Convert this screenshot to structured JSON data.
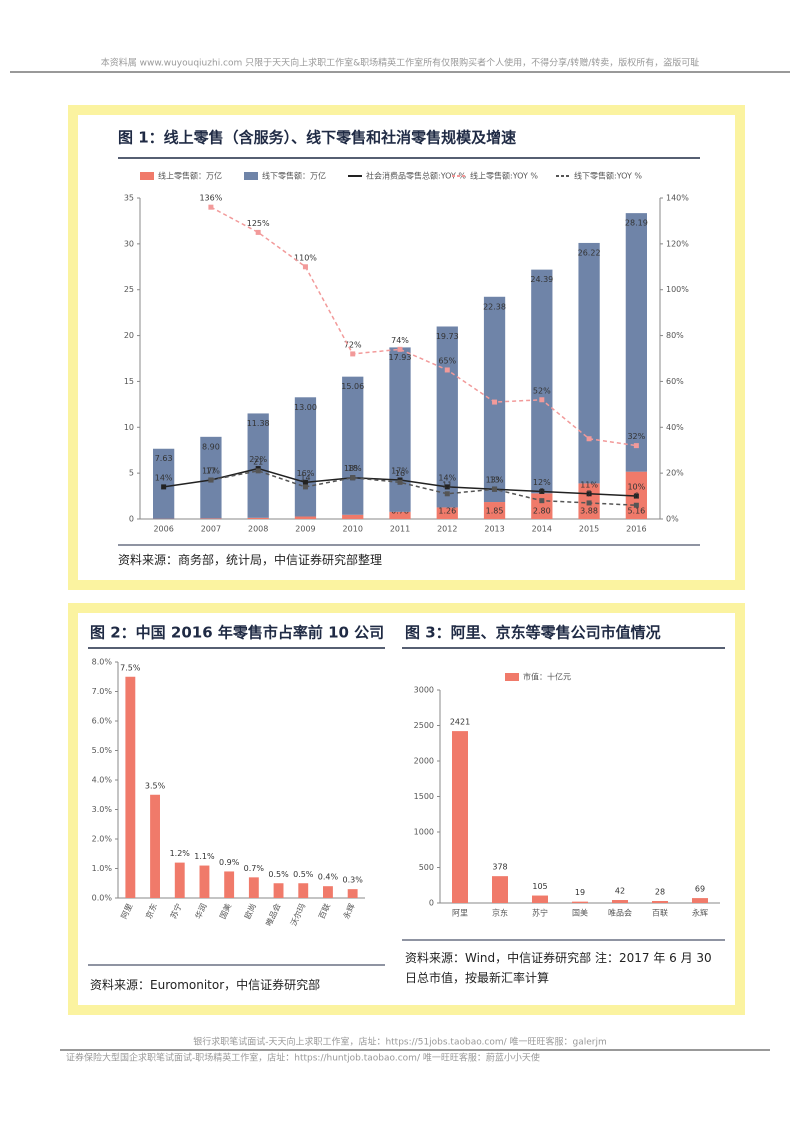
{
  "header": {
    "text": "本资料属 www.wuyouqiuzhi.com 只限于天天向上求职工作室&职场精英工作室所有仅限购买者个人使用，不得分享/转赠/转卖，版权所有，盗版可耻"
  },
  "footer": {
    "line1": "银行求职笔试面试-天天向上求职工作室，店址：https://51jobs.taobao.com/  唯一旺旺客服：galerjm",
    "line2": "证券保险大型国企求职笔试面试-职场精英工作室，店址：https://huntjob.taobao.com/  唯一旺旺客服：蔚蓝小小天使"
  },
  "chart_data": [
    {
      "type": "combo",
      "title": "图 1：线上零售（含服务）、线下零售和社消零售规模及增速",
      "source": "资料来源：商务部，统计局，中信证券研究部整理",
      "categories": [
        "2006",
        "2007",
        "2008",
        "2009",
        "2010",
        "2011",
        "2012",
        "2013",
        "2014",
        "2015",
        "2016"
      ],
      "ylim": [
        0,
        35
      ],
      "yticks": [
        0,
        5,
        10,
        15,
        20,
        25,
        30,
        35
      ],
      "y2lim": [
        0,
        140
      ],
      "y2ticks": [
        {
          "value": 0,
          "label": "0%"
        },
        {
          "value": 20,
          "label": "20%"
        },
        {
          "value": 40,
          "label": "40%"
        },
        {
          "value": 60,
          "label": "60%"
        },
        {
          "value": 80,
          "label": "80%"
        },
        {
          "value": 100,
          "label": "100%"
        },
        {
          "value": 120,
          "label": "120%"
        },
        {
          "value": 140,
          "label": "140%"
        }
      ],
      "series": [
        {
          "name": "线上零售额：万亿",
          "kind": "bar",
          "color": "#f07a6a",
          "values": [
            0.03,
            0.06,
            0.13,
            0.27,
            0.46,
            0.78,
            1.26,
            1.85,
            2.8,
            3.88,
            5.16
          ],
          "value_labels": [
            "0.03",
            "0.06",
            "0.13",
            "0.27",
            "0.46",
            "0.78",
            "1.26",
            "1.85",
            "2.80",
            "3.88",
            "5.16"
          ]
        },
        {
          "name": "线下零售额：万亿",
          "kind": "bar",
          "color": "#6f84a8",
          "values": [
            7.63,
            8.9,
            11.38,
            13.0,
            15.06,
            17.93,
            19.73,
            22.38,
            24.39,
            26.22,
            28.19
          ],
          "value_labels": [
            "7.63",
            "8.90",
            "11.38",
            "13.00",
            "15.06",
            "17.93",
            "19.73",
            "22.38",
            "24.39",
            "26.22",
            "28.19"
          ]
        },
        {
          "name": "社会消费品零售总额:YOY %",
          "kind": "line",
          "axis": "y2",
          "color": "#222222",
          "dash": false,
          "values": [
            14,
            17,
            22,
            16,
            18,
            17,
            14,
            13,
            12,
            11,
            10
          ],
          "value_labels": [
            "14%",
            "17%",
            "22%",
            "16%",
            "18%",
            "17%",
            "14%",
            "13%",
            "12%",
            "11%",
            "10%"
          ]
        },
        {
          "name": "线上零售额:YOY %",
          "kind": "line",
          "axis": "y2",
          "color": "#f29a9a",
          "dash": true,
          "values": [
            null,
            136,
            125,
            110,
            72,
            74,
            65,
            51,
            52,
            35,
            32
          ],
          "value_labels": [
            null,
            "136%",
            "125%",
            "110%",
            "72%",
            "74%",
            "65%",
            null,
            "52%",
            null,
            "32%"
          ]
        },
        {
          "name": "线下零售额:YOY %",
          "kind": "line",
          "axis": "y2",
          "color": "#555555",
          "dash": true,
          "values": [
            null,
            17,
            21,
            14,
            18,
            16,
            11,
            13,
            8,
            7,
            6
          ]
        }
      ]
    },
    {
      "type": "bar",
      "title": "图 2：中国 2016 年零售市占率前 10 公司",
      "source": "资料来源：Euromonitor，中信证券研究部",
      "categories": [
        "阿里",
        "京东",
        "苏宁",
        "华润",
        "国美",
        "欧尚",
        "唯品会",
        "沃尔玛",
        "百联",
        "永辉"
      ],
      "ylim": [
        0,
        8
      ],
      "yticks": [
        {
          "value": 0,
          "label": "0.0%"
        },
        {
          "value": 1,
          "label": "1.0%"
        },
        {
          "value": 2,
          "label": "2.0%"
        },
        {
          "value": 3,
          "label": "3.0%"
        },
        {
          "value": 4,
          "label": "4.0%"
        },
        {
          "value": 5,
          "label": "5.0%"
        },
        {
          "value": 6,
          "label": "6.0%"
        },
        {
          "value": 7,
          "label": "7.0%"
        },
        {
          "value": 8,
          "label": "8.0%"
        }
      ],
      "series": [
        {
          "kind": "bar",
          "color": "#f07a6a",
          "values": [
            7.5,
            3.5,
            1.2,
            1.1,
            0.9,
            0.7,
            0.5,
            0.5,
            0.4,
            0.3
          ],
          "value_labels": [
            "7.5%",
            "3.5%",
            "1.2%",
            "1.1%",
            "0.9%",
            "0.7%",
            "0.5%",
            "0.5%",
            "0.4%",
            "0.3%"
          ]
        }
      ]
    },
    {
      "type": "bar",
      "title": "图 3：阿里、京东等零售公司市值情况",
      "source": "资料来源：Wind，中信证券研究部 注：2017 年 6 月 30 日总市值，按最新汇率计算",
      "categories": [
        "阿里",
        "京东",
        "苏宁",
        "国美",
        "唯品会",
        "百联",
        "永辉"
      ],
      "ylim": [
        0,
        3000
      ],
      "yticks": [
        0,
        500,
        1000,
        1500,
        2000,
        2500,
        3000
      ],
      "series": [
        {
          "name": "市值：十亿元",
          "kind": "bar",
          "color": "#f07a6a",
          "values": [
            2421,
            378,
            105,
            19,
            42,
            28,
            69
          ]
        }
      ]
    }
  ]
}
